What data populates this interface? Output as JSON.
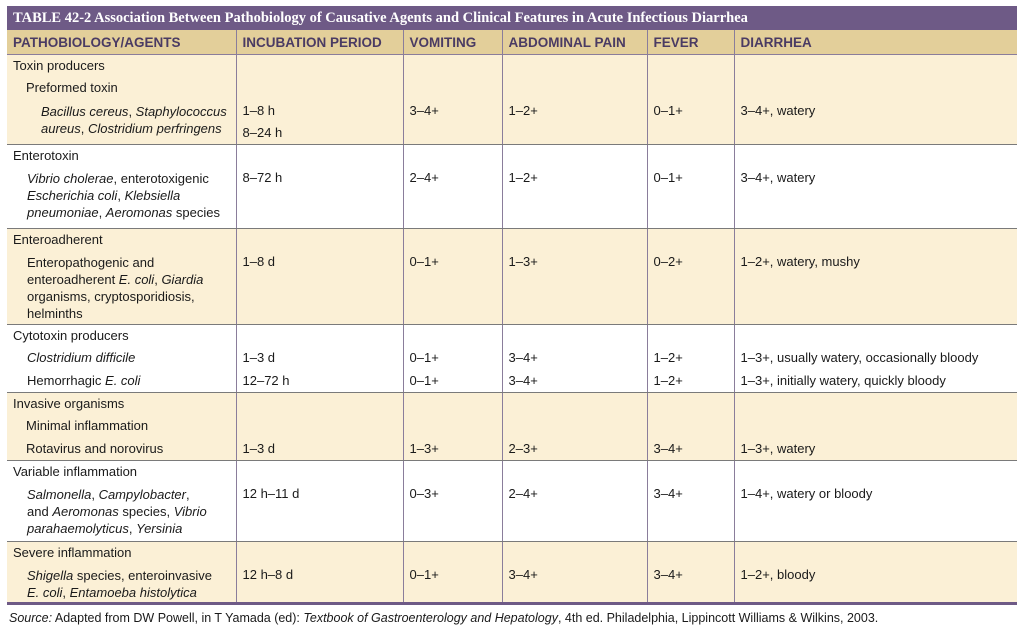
{
  "table": {
    "title": "TABLE 42-2  Association Between Pathobiology of Causative Agents and Clinical Features in Acute Infectious Diarrhea",
    "headers": {
      "agents": "PATHOBIOLOGY/AGENTS",
      "incubation": "INCUBATION PERIOD",
      "vomiting": "VOMITING",
      "pain": "ABDOMINAL PAIN",
      "fever": "FEVER",
      "diarrhea": "DIARRHEA"
    },
    "g1": {
      "head": "Toxin producers",
      "sub": "Preformed toxin",
      "a1": "Bacillus cereus",
      "a2": ", ",
      "a3": "Staphylococcus",
      "a4": "aureus",
      "a5": ", ",
      "a6": "Clostridium perfringens",
      "inc1": "1–8 h",
      "inc2": "8–24 h",
      "vom": "3–4+",
      "pain": "1–2+",
      "fever": "0–1+",
      "diar": "3–4+, watery"
    },
    "g2": {
      "head": "Enterotoxin",
      "a1": "Vibrio cholerae",
      "a2": ", enterotoxigenic",
      "a3": "Escherichia coli",
      "a4": ", ",
      "a5": "Klebsiella",
      "a6": "pneumoniae",
      "a7": ", ",
      "a8": "Aeromonas",
      "a9": " species",
      "inc": "8–72 h",
      "vom": "2–4+",
      "pain": "1–2+",
      "fever": "0–1+",
      "diar": "3–4+, watery"
    },
    "g3": {
      "head": "Enteroadherent",
      "a1": "Enteropathogenic and",
      "a2": "enteroadherent ",
      "a3": "E. coli",
      "a4": ", ",
      "a5": "Giardia",
      "a6": "organisms, cryptosporidiosis,",
      "a7": "helminths",
      "inc": "1–8 d",
      "vom": "0–1+",
      "pain": "1–3+",
      "fever": "0–2+",
      "diar": "1–2+, watery, mushy"
    },
    "g4": {
      "head": "Cytotoxin producers",
      "r1_agent": "Clostridium difficile",
      "r1_inc": "1–3 d",
      "r1_vom": "0–1+",
      "r1_pain": "3–4+",
      "r1_fever": "1–2+",
      "r1_diar": "1–3+, usually watery, occasionally bloody",
      "r2_agent_a": "Hemorrhagic ",
      "r2_agent_b": "E. coli",
      "r2_inc": "12–72 h",
      "r2_vom": "0–1+",
      "r2_pain": "3–4+",
      "r2_fever": "1–2+",
      "r2_diar": "1–3+, initially watery, quickly bloody"
    },
    "g5": {
      "head": "Invasive organisms",
      "sub": "Minimal inflammation",
      "agent": "Rotavirus and norovirus",
      "inc": "1–3 d",
      "vom": "1–3+",
      "pain": "2–3+",
      "fever": "3–4+",
      "diar": "1–3+, watery"
    },
    "g6": {
      "head": "Variable inflammation",
      "a1": "Salmonella",
      "a2": ", ",
      "a3": "Campylobacter",
      "a4": ",",
      "a5": "and ",
      "a6": "Aeromonas",
      "a7": " species, ",
      "a8": "Vibrio",
      "a9": "parahaemolyticus",
      "a10": ", ",
      "a11": "Yersinia",
      "inc": "12 h–11 d",
      "vom": "0–3+",
      "pain": "2–4+",
      "fever": "3–4+",
      "diar": "1–4+, watery or bloody"
    },
    "g7": {
      "head": "Severe inflammation",
      "a1": "Shigella",
      "a2": " species, enteroinvasive",
      "a3": "E. coli",
      "a4": ", ",
      "a5": "Entamoeba histolytica",
      "inc": "12 h–8 d",
      "vom": "0–1+",
      "pain": "3–4+",
      "fever": "3–4+",
      "diar": "1–2+, bloody"
    }
  },
  "source": {
    "label": "Source:",
    "text1": " Adapted from DW Powell, in T Yamada (ed): ",
    "book": "Textbook of Gastroenterology and Hepatology",
    "text2": ", 4th ed. Philadelphia, Lippincott Williams & Wilkins, 2003."
  }
}
